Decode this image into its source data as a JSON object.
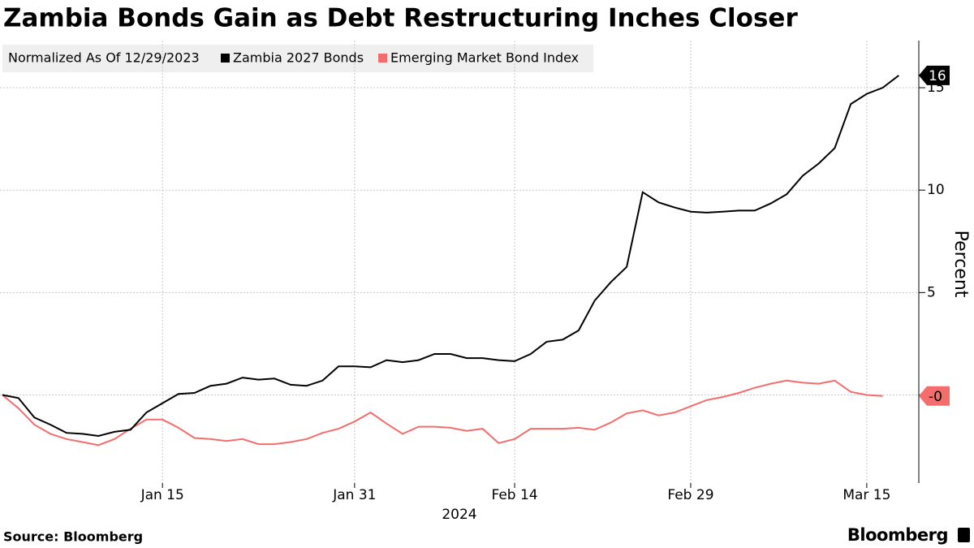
{
  "chart_data": {
    "type": "line",
    "title": "Zambia Bonds Gain as Debt Restructuring Inches Closer",
    "legend_title": "Normalized As Of 12/29/2023",
    "x_axis_label": "2024",
    "y_axis_label": "Percent",
    "source": "Source: Bloomberg",
    "brand": "Bloomberg",
    "x": [
      "2023-12-29",
      "2024-01-02",
      "2024-01-03",
      "2024-01-04",
      "2024-01-05",
      "2024-01-08",
      "2024-01-09",
      "2024-01-10",
      "2024-01-11",
      "2024-01-12",
      "2024-01-15",
      "2024-01-16",
      "2024-01-17",
      "2024-01-18",
      "2024-01-19",
      "2024-01-22",
      "2024-01-23",
      "2024-01-24",
      "2024-01-25",
      "2024-01-26",
      "2024-01-29",
      "2024-01-30",
      "2024-01-31",
      "2024-02-01",
      "2024-02-02",
      "2024-02-05",
      "2024-02-06",
      "2024-02-07",
      "2024-02-08",
      "2024-02-09",
      "2024-02-12",
      "2024-02-13",
      "2024-02-14",
      "2024-02-15",
      "2024-02-16",
      "2024-02-19",
      "2024-02-20",
      "2024-02-21",
      "2024-02-22",
      "2024-02-23",
      "2024-02-26",
      "2024-02-27",
      "2024-02-28",
      "2024-02-29",
      "2024-03-01",
      "2024-03-04",
      "2024-03-05",
      "2024-03-06",
      "2024-03-07",
      "2024-03-08",
      "2024-03-11",
      "2024-03-12",
      "2024-03-13",
      "2024-03-14",
      "2024-03-15",
      "2024-03-18",
      "2024-03-19"
    ],
    "xticks": [
      {
        "value": "2024-01-15",
        "label": "Jan 15"
      },
      {
        "value": "2024-01-31",
        "label": "Jan 31"
      },
      {
        "value": "2024-02-14",
        "label": "Feb 14"
      },
      {
        "value": "2024-02-29",
        "label": "Feb 29"
      },
      {
        "value": "2024-03-15",
        "label": "Mar 15"
      }
    ],
    "ylim": [
      -4.3,
      17.3
    ],
    "yticks": [
      0,
      5,
      10,
      15
    ],
    "grid": true,
    "series": [
      {
        "name": "Zambia 2027 Bonds",
        "color": "#000000",
        "values": [
          0,
          -0.15,
          -1.1,
          -1.45,
          -1.85,
          -1.9,
          -2.0,
          -1.8,
          -1.7,
          -0.85,
          -0.4,
          0.05,
          0.1,
          0.45,
          0.55,
          0.85,
          0.75,
          0.8,
          0.5,
          0.45,
          0.7,
          1.4,
          1.4,
          1.35,
          1.7,
          1.6,
          1.7,
          2.0,
          2.0,
          1.8,
          1.8,
          1.7,
          1.65,
          2.0,
          2.6,
          2.7,
          3.15,
          4.6,
          5.5,
          6.25,
          9.9,
          9.4,
          9.15,
          8.95,
          8.9,
          8.95,
          9.0,
          9.0,
          9.35,
          9.8,
          10.7,
          11.3,
          12.05,
          14.2,
          14.7,
          15.0,
          15.6
        ],
        "value_labels": [
          null,
          null,
          null,
          null,
          null,
          null,
          null,
          null,
          null,
          null,
          null,
          null,
          null,
          null,
          null,
          null,
          null,
          null,
          null,
          null,
          null,
          null,
          null,
          null,
          null,
          null,
          null,
          null,
          null,
          null,
          null,
          null,
          null,
          null,
          null,
          null,
          null,
          null,
          null,
          null,
          null,
          null,
          null,
          null,
          null,
          null,
          null,
          null,
          null,
          null,
          null,
          null,
          null,
          null,
          null,
          null,
          "16"
        ]
      },
      {
        "name": "Emerging Market Bond Index",
        "color": "#f36d6d",
        "values": [
          0,
          -0.65,
          -1.45,
          -1.9,
          -2.15,
          -2.3,
          -2.45,
          -2.15,
          -1.65,
          -1.2,
          -1.2,
          -1.6,
          -2.1,
          -2.15,
          -2.25,
          -2.15,
          -2.4,
          -2.4,
          -2.3,
          -2.15,
          -1.85,
          -1.65,
          -1.3,
          -0.85,
          -1.4,
          -1.9,
          -1.55,
          -1.55,
          -1.6,
          -1.75,
          -1.65,
          -2.35,
          -2.15,
          -1.65,
          -1.65,
          -1.65,
          -1.6,
          -1.7,
          -1.35,
          -0.9,
          -0.75,
          -1.0,
          -0.85,
          -0.55,
          -0.25,
          -0.1,
          0.1,
          0.35,
          0.55,
          0.7,
          0.6,
          0.55,
          0.7,
          0.15,
          0,
          -0.05,
          null
        ],
        "value_labels": [
          null,
          null,
          null,
          null,
          null,
          null,
          null,
          null,
          null,
          null,
          null,
          null,
          null,
          null,
          null,
          null,
          null,
          null,
          null,
          null,
          null,
          null,
          null,
          null,
          null,
          null,
          null,
          null,
          null,
          null,
          null,
          null,
          null,
          null,
          null,
          null,
          null,
          null,
          null,
          null,
          null,
          null,
          null,
          null,
          null,
          null,
          null,
          null,
          null,
          null,
          null,
          null,
          null,
          null,
          null,
          "-0",
          null
        ]
      }
    ]
  }
}
